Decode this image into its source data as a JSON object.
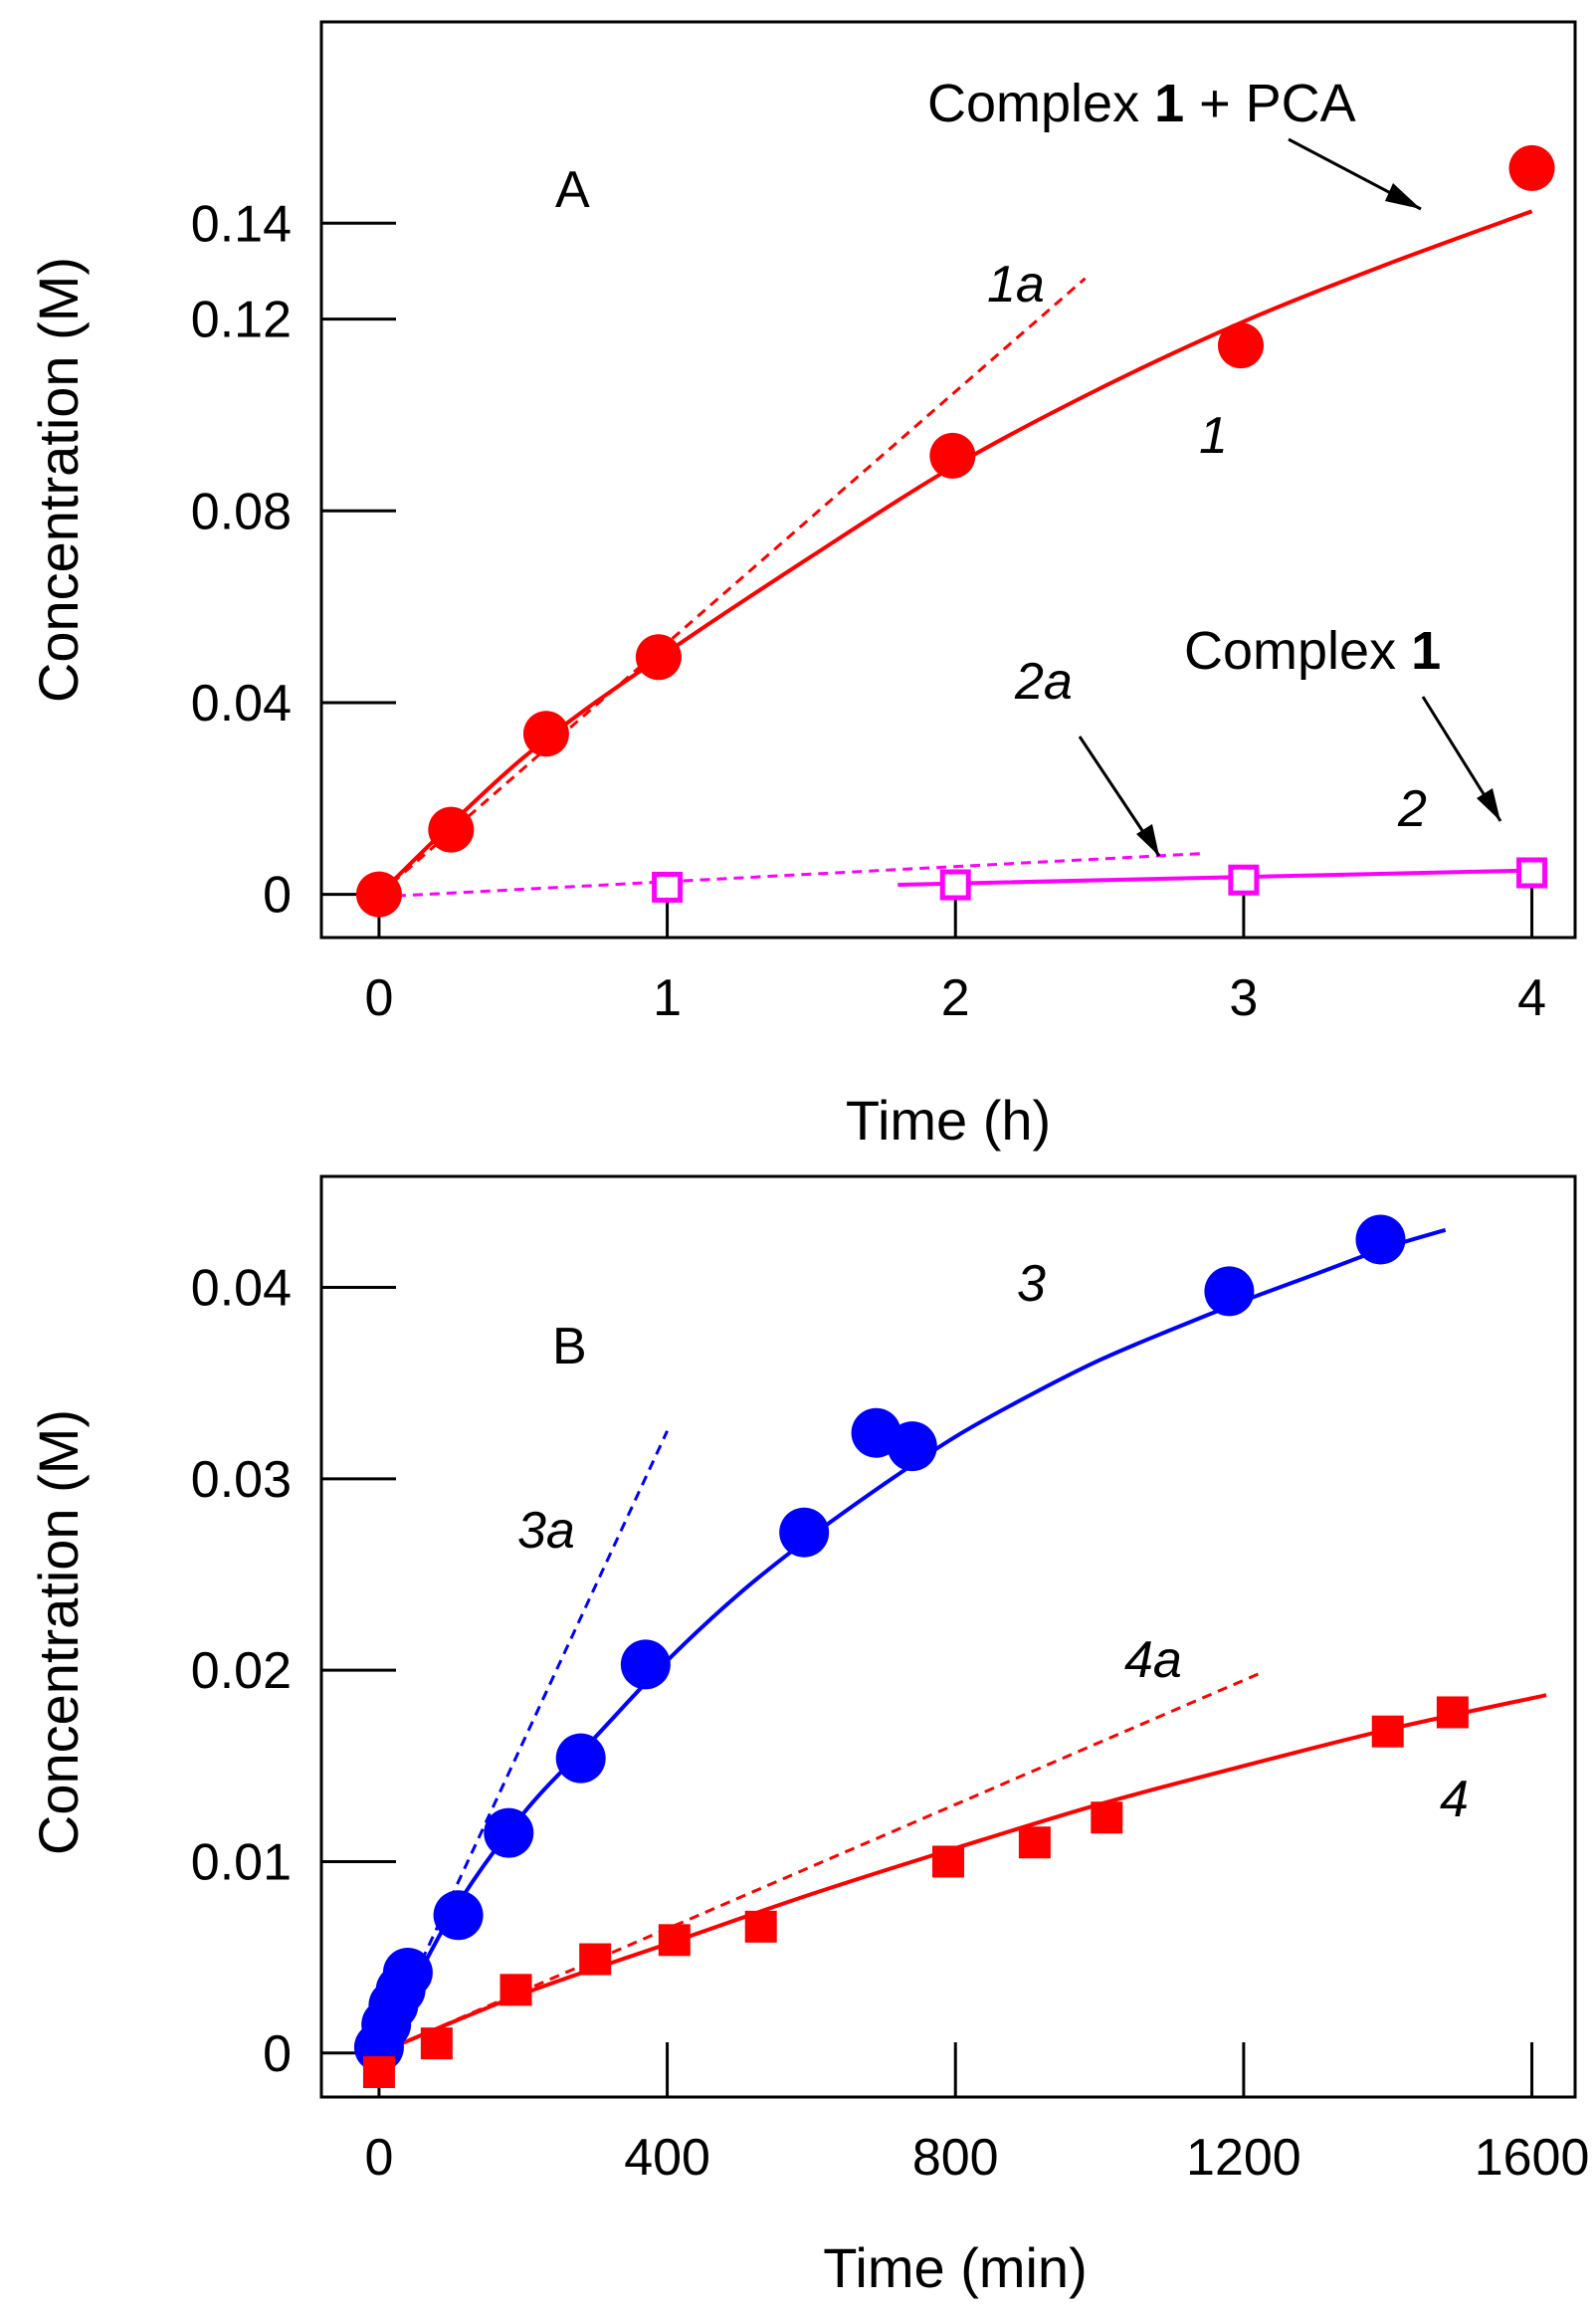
{
  "chart_data": [
    {
      "panel": "A",
      "type": "scatter",
      "xlabel": "Time (h)",
      "ylabel": "Concentration (M)",
      "xlim": [
        -0.2,
        4.15
      ],
      "ylim": [
        -0.009,
        0.182
      ],
      "xticks": [
        0,
        1,
        2,
        3,
        4
      ],
      "xtick_labels": [
        "0",
        "1",
        "2",
        "3",
        "4"
      ],
      "yticks": [
        0,
        0.04,
        0.08,
        0.12,
        0.14
      ],
      "ytick_labels": [
        "0",
        "0.04",
        "0.08",
        "0.12",
        "0.14"
      ],
      "colors": {
        "series1": "#ff0000",
        "series2": "#ff00ff"
      },
      "series": [
        {
          "name": "1",
          "label": "1",
          "marker": "circle",
          "color": "#ff0000",
          "x": [
            0,
            0.25,
            0.58,
            0.97,
            1.99,
            2.99,
            4.0
          ],
          "y": [
            0.0,
            0.0135,
            0.0335,
            0.0495,
            0.0915,
            0.1145,
            0.1515
          ],
          "fit_x": [
            0,
            0.5,
            1,
            1.5,
            2,
            2.5,
            3,
            3.5,
            4
          ],
          "fit_y": [
            0.0,
            0.0285,
            0.0505,
            0.0705,
            0.0895,
            0.1055,
            0.1195,
            0.1315,
            0.1425
          ]
        },
        {
          "name": "2",
          "label": "2",
          "marker": "open-square",
          "color": "#ff00ff",
          "x": [
            1,
            2,
            3,
            4
          ],
          "y": [
            0.0015,
            0.002,
            0.003,
            0.0045
          ],
          "fit_x": [
            1.8,
            4
          ],
          "fit_y": [
            0.002,
            0.005
          ]
        }
      ],
      "tangents": [
        {
          "label": "1a",
          "color": "#ff0000",
          "x": [
            0,
            2.45
          ],
          "y": [
            0.0,
            0.1285
          ]
        },
        {
          "label": "2a",
          "color": "#ff00ff",
          "x": [
            0,
            2.85
          ],
          "y": [
            -0.0005,
            0.0085
          ]
        }
      ],
      "annotations": {
        "panel_letter": "A",
        "top_label_a": "Complex ",
        "top_label_b": "1",
        "top_label_c": " + PCA",
        "mid_label_a": "Complex ",
        "mid_label_b": "1",
        "curve_1": "1",
        "curve_1a": "1a",
        "curve_2": "2",
        "curve_2a": "2a"
      }
    },
    {
      "panel": "B",
      "type": "scatter",
      "xlabel": "Time (min)",
      "ylabel": "Concentration (M)",
      "xlim": [
        -80,
        1660
      ],
      "ylim": [
        -0.0023,
        0.0458
      ],
      "xticks": [
        0,
        400,
        800,
        1200,
        1600
      ],
      "xtick_labels": [
        "0",
        "400",
        "800",
        "1200",
        "1600"
      ],
      "yticks": [
        0,
        0.01,
        0.02,
        0.03,
        0.04
      ],
      "ytick_labels": [
        "0",
        "0.01",
        "0.02",
        "0.03",
        "0.04"
      ],
      "colors": {
        "series3": "#0000ff",
        "series4": "#ff0000"
      },
      "series": [
        {
          "name": "3",
          "label": "3",
          "marker": "circle",
          "color": "#0000ff",
          "x": [
            0,
            10,
            20,
            30,
            40,
            110,
            180,
            280,
            370,
            590,
            690,
            740,
            1180,
            1390
          ],
          "y": [
            0.0003,
            0.0015,
            0.0025,
            0.0033,
            0.0042,
            0.0072,
            0.0115,
            0.0154,
            0.0203,
            0.0272,
            0.0324,
            0.0317,
            0.0398,
            0.0425
          ],
          "fit_x": [
            0,
            100,
            200,
            300,
            400,
            500,
            600,
            700,
            800,
            900,
            1000,
            1100,
            1200,
            1300,
            1400,
            1480
          ],
          "fit_y": [
            0.0,
            0.0072,
            0.0125,
            0.0165,
            0.0205,
            0.024,
            0.027,
            0.0297,
            0.0322,
            0.0343,
            0.0362,
            0.0378,
            0.0393,
            0.0407,
            0.0421,
            0.043
          ]
        },
        {
          "name": "4",
          "label": "4",
          "marker": "square",
          "color": "#ff0000",
          "x": [
            0,
            80,
            190,
            300,
            410,
            530,
            790,
            910,
            1010,
            1400,
            1490
          ],
          "y": [
            -0.001,
            0.0005,
            0.0033,
            0.0049,
            0.0059,
            0.0066,
            0.01,
            0.011,
            0.0123,
            0.0168,
            0.0178
          ],
          "fit_x": [
            0,
            200,
            400,
            600,
            800,
            1000,
            1200,
            1400,
            1620
          ],
          "fit_y": [
            0.0,
            0.0031,
            0.0057,
            0.0083,
            0.0107,
            0.013,
            0.015,
            0.0169,
            0.0187
          ]
        }
      ],
      "tangents": [
        {
          "label": "3a",
          "color": "#0000ff",
          "x": [
            0,
            400
          ],
          "y": [
            0.0,
            0.0325
          ]
        },
        {
          "label": "4a",
          "color": "#ff0000",
          "x": [
            0,
            1220
          ],
          "y": [
            0.0,
            0.0198
          ]
        }
      ],
      "annotations": {
        "panel_letter": "B",
        "curve_3": "3",
        "curve_3a": "3a",
        "curve_4": "4",
        "curve_4a": "4a"
      }
    }
  ]
}
